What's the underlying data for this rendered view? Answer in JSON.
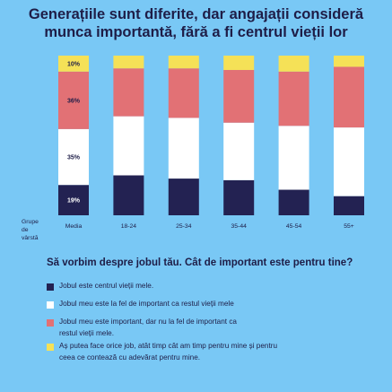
{
  "title_line1": "Generațiile sunt diferite, dar angajații consideră",
  "title_line2": "munca importantă, fără a fi centrul vieții lor",
  "chart_data": {
    "type": "bar",
    "stacked": true,
    "categories": [
      "Media",
      "18-24",
      "25-34",
      "35-44",
      "45-54",
      "55+"
    ],
    "series": [
      {
        "name": "Jobul este centrul vieții mele.",
        "color": "#232252",
        "values": [
          19,
          25,
          23,
          22,
          16,
          12
        ]
      },
      {
        "name": "Jobul meu este la fel de important ca restul vieții mele",
        "color": "#ffffff",
        "values": [
          35,
          37,
          38,
          36,
          40,
          43
        ]
      },
      {
        "name": "Jobul meu este important, dar nu la fel de important ca restul vieții mele.",
        "color": "#e27175",
        "values": [
          36,
          30,
          31,
          33,
          34,
          38
        ]
      },
      {
        "name": "Aș putea face orice job, atât timp cât am timp pentru mine și pentru ceea ce contează cu adevărat pentru mine.",
        "color": "#f5e157",
        "values": [
          10,
          8,
          8,
          9,
          10,
          7
        ]
      }
    ],
    "data_labels": [
      "19%",
      "35%",
      "36%",
      "10%"
    ],
    "ylim": [
      0,
      100
    ],
    "xlabel": "Grupe de vârstă",
    "grid": false
  },
  "ylabel_lines": [
    "Grupe",
    "de",
    "vârstă"
  ],
  "question": "Să vorbim despre jobul tău. Cât de important este pentru tine?",
  "legend": [
    {
      "color": "#232252",
      "lines": [
        "Jobul este centrul vieții mele."
      ]
    },
    {
      "color": "#ffffff",
      "lines": [
        "Jobul meu este la fel de important ca restul vieții mele"
      ]
    },
    {
      "color": "#e27175",
      "lines": [
        "Jobul meu este important, dar nu la fel de important ca",
        "restul vieții mele."
      ]
    },
    {
      "color": "#f5e157",
      "lines": [
        "Aș putea face orice job, atât timp cât am timp pentru mine și pentru",
        "ceea ce contează cu adevărat pentru mine."
      ]
    }
  ]
}
